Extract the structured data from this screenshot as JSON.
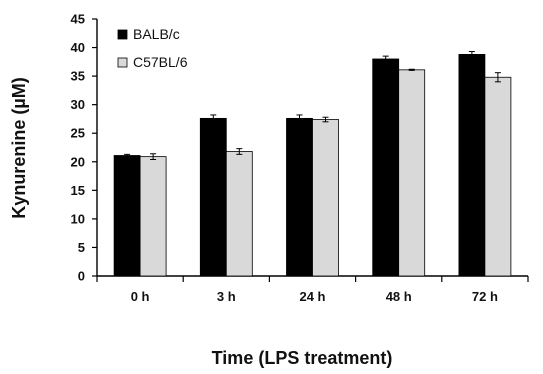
{
  "chart_data": {
    "type": "bar",
    "categories": [
      "0 h",
      "3 h",
      "24 h",
      "48 h",
      "72 h"
    ],
    "series": [
      {
        "name": "BALB/c",
        "values": [
          21.1,
          27.6,
          27.6,
          38.0,
          38.8
        ],
        "errors": [
          0.2,
          0.6,
          0.6,
          0.5,
          0.5
        ],
        "color": "#000000"
      },
      {
        "name": "C57BL/6",
        "values": [
          20.9,
          21.8,
          27.4,
          36.1,
          34.8
        ],
        "errors": [
          0.5,
          0.5,
          0.4,
          0.1,
          0.8
        ],
        "color": "#d9d9d9"
      }
    ],
    "xlabel": "Time (LPS treatment)",
    "ylabel": "Kynurenine (µM)",
    "ylim": [
      0,
      45
    ],
    "yticks": [
      0,
      5,
      10,
      15,
      20,
      25,
      30,
      35,
      40,
      45
    ],
    "grid": false,
    "legend_position": "top-left"
  }
}
